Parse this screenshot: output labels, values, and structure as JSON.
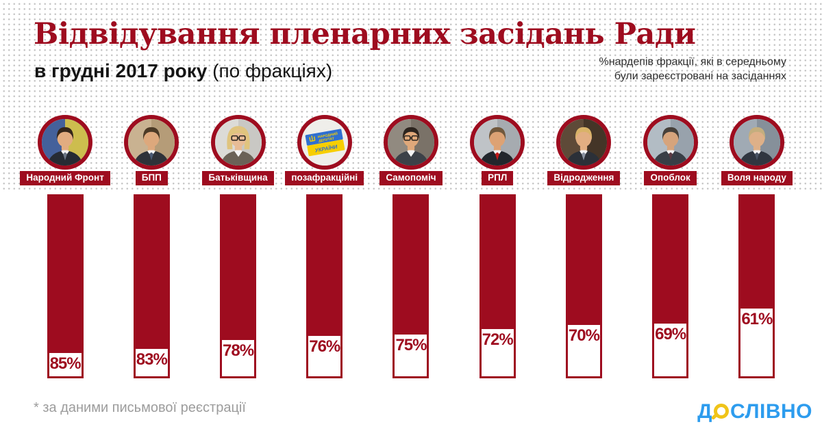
{
  "page": {
    "title": "Відвідування пленарних засідань Ради",
    "subtitle_bold": "в грудні 2017 року",
    "subtitle_rest": " (по фракціях)",
    "annotation_line1": "%нардепів фракції, які в середньому",
    "annotation_line2": "були зареєстровані на засіданнях",
    "footnote": "* за даними письмової реєстрації"
  },
  "logo": {
    "prefix": "Д",
    "suffix": "СЛІВНО",
    "magnifier_icon": "magnifier-icon",
    "blue": "#2d9cee",
    "yellow": "#f0c419"
  },
  "colors": {
    "accent_red": "#9e0c1f",
    "dot_gray": "#c7c7c7",
    "subtitle_black": "#151515",
    "annotation_gray": "#2f2f2f",
    "footnote_gray": "#9c9c9c",
    "background": "#ffffff"
  },
  "chart_data": {
    "type": "bar",
    "title": "Відвідування пленарних засідань Ради в грудні 2017 року (по фракціях)",
    "ylabel": "%нардепів фракції, які в середньому були зареєстровані на засіданнях",
    "xlabel": "",
    "unit": "%",
    "orientation": "vertical",
    "ylim": [
      0,
      100
    ],
    "grid": false,
    "bar_color": "#9e0c1f",
    "categories": [
      "Народний Фронт",
      "БПП",
      "Батьківщина",
      "позафракційні",
      "Самопоміч",
      "РПЛ",
      "Відродження",
      "Опоблок",
      "Воля народу"
    ],
    "values": [
      85,
      83,
      78,
      76,
      75,
      72,
      70,
      69,
      61
    ],
    "value_labels": [
      "85%",
      "83%",
      "78%",
      "76%",
      "75%",
      "72%",
      "70%",
      "69%",
      "61%"
    ],
    "note": "* за даними письмової реєстрації"
  },
  "factions": [
    {
      "label": "Народний Фронт",
      "value": 85,
      "value_label": "85%",
      "avatar": {
        "kind": "person",
        "bg": "#44619b",
        "bg2": "#cdbd4e",
        "hair": "#35261a",
        "skin": "#e2ac80",
        "suit": "#262b33",
        "tie": "#6b7584"
      }
    },
    {
      "label": "БПП",
      "value": 83,
      "value_label": "83%",
      "avatar": {
        "kind": "person",
        "bg": "#c9b291",
        "bg2": "#b59c78",
        "hair": "#4c3a26",
        "skin": "#dda87c",
        "suit": "#2e3239",
        "tie": "#4a5a74"
      }
    },
    {
      "label": "Батьківщина",
      "value": 78,
      "value_label": "78%",
      "avatar": {
        "kind": "person",
        "female": true,
        "glasses": true,
        "bg": "#dcdbd7",
        "bg2": "#c9c8c4",
        "hair": "#e0c47e",
        "skin": "#e8bc96",
        "suit": "#6b6257"
      }
    },
    {
      "label": "позафракційні",
      "value": 76,
      "value_label": "76%",
      "avatar": {
        "kind": "flag",
        "badge_lines": [
          "НАРОДНИЙ",
          "ДЕПУТАТ",
          "УКРАЇНИ"
        ],
        "blue": "#2f6fd0",
        "yellow": "#f7ce00"
      }
    },
    {
      "label": "Самопоміч",
      "value": 75,
      "value_label": "75%",
      "avatar": {
        "kind": "person",
        "glasses": true,
        "bg": "#918a80",
        "bg2": "#7a7268",
        "hair": "#2c241e",
        "skin": "#dfa87a",
        "suit": "#3c4148"
      }
    },
    {
      "label": "РПЛ",
      "value": 72,
      "value_label": "72%",
      "avatar": {
        "kind": "person",
        "bg": "#bfc3c7",
        "bg2": "#a6abb0",
        "hair": "#71583c",
        "skin": "#dda274",
        "suit": "#22262c",
        "tie": "#c21a1a"
      }
    },
    {
      "label": "Відродження",
      "value": 70,
      "value_label": "70%",
      "avatar": {
        "kind": "person",
        "bg": "#5e4a38",
        "bg2": "#443527",
        "hair": "#d9b368",
        "skin": "#e2ae82",
        "suit": "#2b3038",
        "tie": "#8a93a2"
      }
    },
    {
      "label": "Опоблок",
      "value": 69,
      "value_label": "69%",
      "avatar": {
        "kind": "person",
        "bg": "#b2bcc4",
        "bg2": "#98a2ac",
        "hair": "#46403a",
        "skin": "#d6a47c",
        "suit": "#383e46",
        "tie": "#5a3a42"
      }
    },
    {
      "label": "Воля народу",
      "value": 61,
      "value_label": "61%",
      "avatar": {
        "kind": "person",
        "bg": "#a0aab4",
        "bg2": "#86909a",
        "hair": "#c4ae7e",
        "skin": "#deb088",
        "suit": "#303640",
        "tie": "#4a5464"
      }
    }
  ]
}
